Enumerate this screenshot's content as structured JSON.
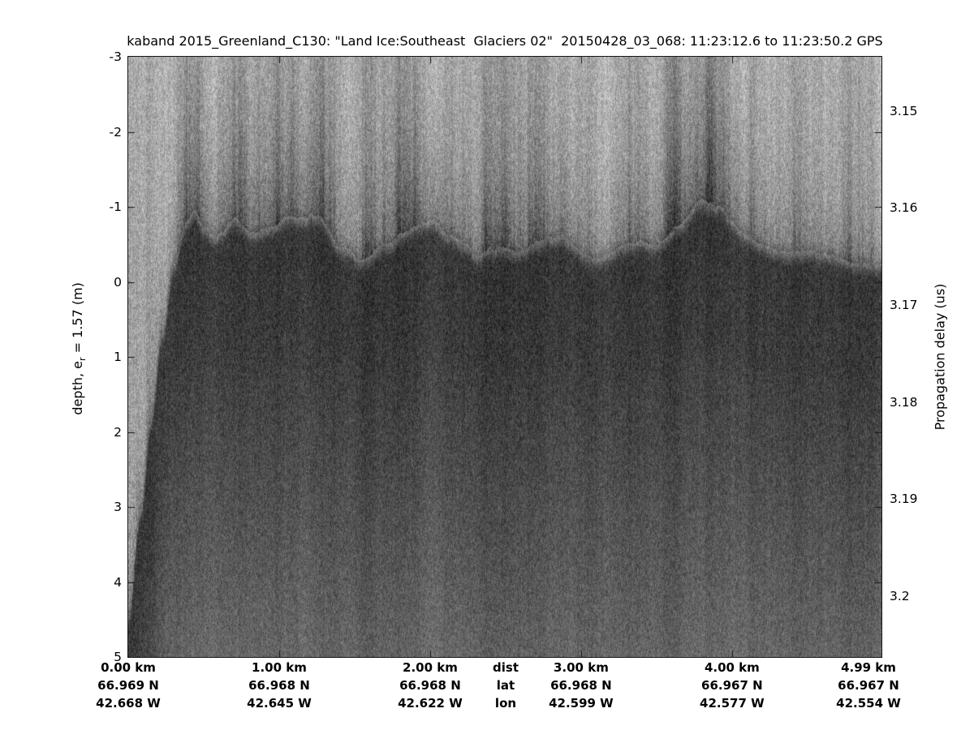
{
  "title": "kaband 2015_Greenland_C130: \"Land Ice:Southeast  Glaciers 02\"  20150428_03_068: 11:23:12.6 to 11:23:50.2 GPS",
  "left_axis": {
    "label_prefix": "depth, e",
    "label_sub": "r",
    "label_suffix": " = 1.57 (m)"
  },
  "right_axis": {
    "label": "Propagation delay (us)"
  },
  "chart_data": {
    "type": "heatmap",
    "title": "kaband 2015_Greenland_C130: \"Land Ice:Southeast  Glaciers 02\"  20150428_03_068: 11:23:12.6 to 11:23:50.2 GPS",
    "colormap": "inverted grayscale radar echogram; dark = strong return, light = noise floor",
    "y_left_label": "depth, e_r = 1.57 (m)",
    "y_left_ticks": [
      -3,
      -2,
      -1,
      0,
      1,
      2,
      3,
      4,
      5
    ],
    "y_left_range": [
      -3,
      5
    ],
    "y_right_label": "Propagation delay (us)",
    "y_right_tick_labels": [
      "3.15",
      "3.16",
      "3.17",
      "3.18",
      "3.19",
      "3.2"
    ],
    "y_right_tick_values": [
      3.15,
      3.16,
      3.17,
      3.18,
      3.19,
      3.2
    ],
    "y_right_range": [
      3.1444,
      3.2063
    ],
    "x_range_km": [
      0,
      4.99
    ],
    "x_tick_km_values": [
      0,
      1,
      2,
      3,
      4,
      4.99
    ],
    "x_row_labels": [
      "dist",
      "lat",
      "lon"
    ],
    "columns": [
      {
        "km_value": 0.0,
        "dist": "0.00 km",
        "lat": "66.969 N",
        "lon": "42.668 W"
      },
      {
        "km_value": 1.0,
        "dist": "1.00 km",
        "lat": "66.968 N",
        "lon": "42.645 W"
      },
      {
        "km_value": 2.0,
        "dist": "2.00 km",
        "lat": "66.968 N",
        "lon": "42.622 W"
      },
      {
        "km_value": 3.0,
        "dist": "3.00 km",
        "lat": "66.968 N",
        "lon": "42.599 W"
      },
      {
        "km_value": 4.0,
        "dist": "4.00 km",
        "lat": "66.967 N",
        "lon": "42.577 W"
      },
      {
        "km_value": 4.99,
        "dist": "4.99 km",
        "lat": "66.967 N",
        "lon": "42.554 W"
      }
    ],
    "surface_return_profile": [
      [
        0.0,
        4.4
      ],
      [
        0.08,
        3.0
      ],
      [
        0.15,
        1.8
      ],
      [
        0.22,
        0.7
      ],
      [
        0.3,
        -0.3
      ],
      [
        0.38,
        -0.8
      ],
      [
        0.44,
        -1.0
      ],
      [
        0.5,
        -0.7
      ],
      [
        0.58,
        -0.55
      ],
      [
        0.7,
        -0.75
      ],
      [
        0.8,
        -0.55
      ],
      [
        0.95,
        -0.7
      ],
      [
        1.1,
        -0.85
      ],
      [
        1.25,
        -0.9
      ],
      [
        1.4,
        -0.5
      ],
      [
        1.55,
        -0.35
      ],
      [
        1.7,
        -0.6
      ],
      [
        1.85,
        -0.75
      ],
      [
        2.0,
        -0.8
      ],
      [
        2.15,
        -0.6
      ],
      [
        2.3,
        -0.35
      ],
      [
        2.45,
        -0.4
      ],
      [
        2.6,
        -0.3
      ],
      [
        2.75,
        -0.55
      ],
      [
        2.9,
        -0.6
      ],
      [
        3.05,
        -0.4
      ],
      [
        3.2,
        -0.45
      ],
      [
        3.35,
        -0.55
      ],
      [
        3.5,
        -0.6
      ],
      [
        3.65,
        -0.8
      ],
      [
        3.8,
        -1.1
      ],
      [
        3.9,
        -0.95
      ],
      [
        4.0,
        -0.7
      ],
      [
        4.1,
        -0.55
      ],
      [
        4.25,
        -0.45
      ],
      [
        4.4,
        -0.4
      ],
      [
        4.6,
        -0.35
      ],
      [
        4.8,
        -0.3
      ],
      [
        4.99,
        -0.3
      ]
    ],
    "tones": {
      "noise_floor_light": "#a5a5a5",
      "surface_return_dark": "#383838",
      "deep_return": "#636363",
      "axis_color": "#161616"
    }
  }
}
